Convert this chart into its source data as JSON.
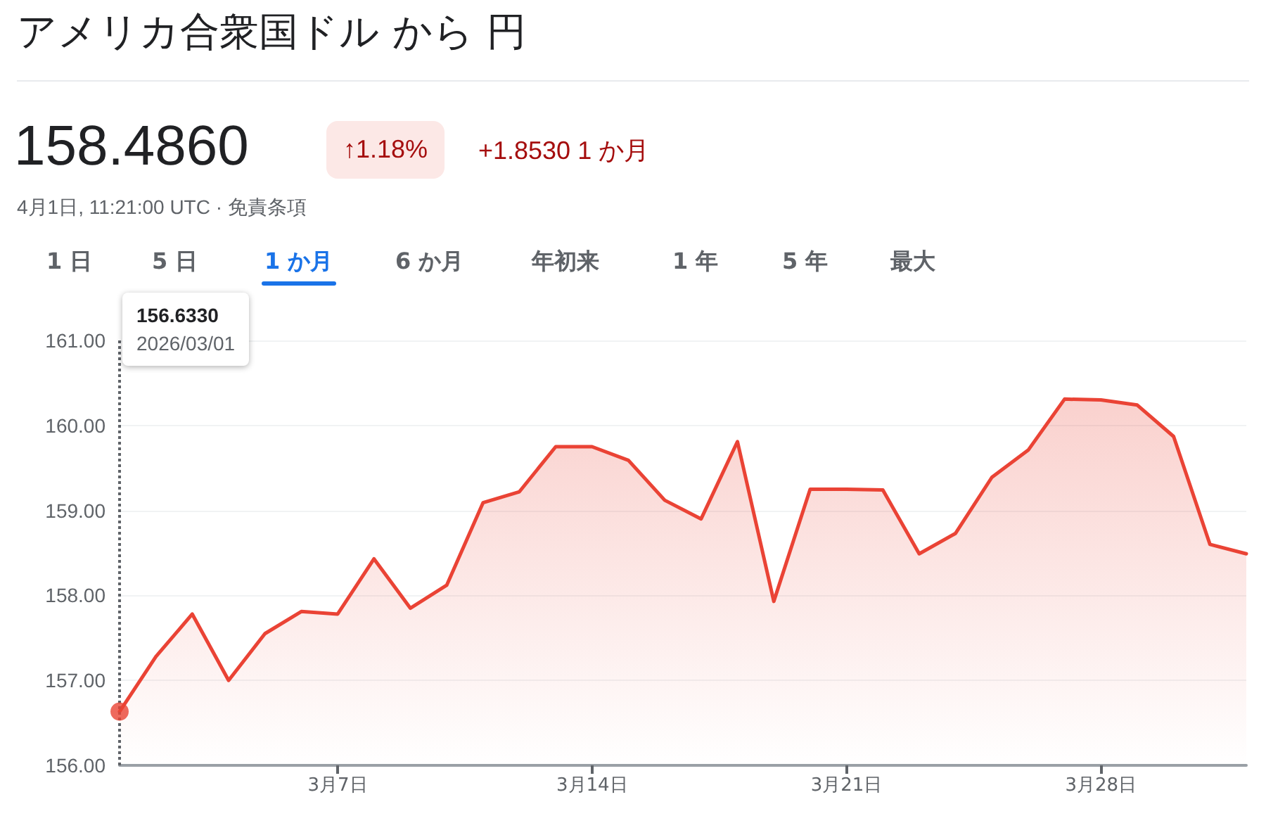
{
  "chart_data": {
    "type": "area",
    "title": "アメリカ合衆国ドル から 円",
    "subtitle": "158.4860",
    "annotations": [
      "↑1.18%",
      "+1.8530 1 か月",
      "4月1日, 11:21:00 UTC · 免責条項",
      "1 日",
      "5 日",
      "1 か月",
      "6 か月",
      "年初来",
      "1 年",
      "5 年",
      "最大",
      "156.6330\n2026/03/01"
    ],
    "x": [
      "2026-03-01",
      "2026-03-02",
      "2026-03-03",
      "2026-03-04",
      "2026-03-05",
      "2026-03-06",
      "2026-03-07",
      "2026-03-08",
      "2026-03-09",
      "2026-03-10",
      "2026-03-11",
      "2026-03-12",
      "2026-03-13",
      "2026-03-14",
      "2026-03-15",
      "2026-03-16",
      "2026-03-17",
      "2026-03-18",
      "2026-03-19",
      "2026-03-20",
      "2026-03-21",
      "2026-03-22",
      "2026-03-23",
      "2026-03-24",
      "2026-03-25",
      "2026-03-26",
      "2026-03-27",
      "2026-03-28",
      "2026-03-29",
      "2026-03-30",
      "2026-03-31",
      "2026-04-01"
    ],
    "series": [
      {
        "color": "#ea4335",
        "values": [
          156.633,
          157.28,
          157.78,
          157.0,
          157.55,
          157.81,
          157.78,
          158.43,
          157.85,
          158.12,
          159.09,
          159.22,
          159.75,
          159.75,
          159.59,
          159.12,
          158.9,
          159.81,
          157.93,
          159.25,
          159.25,
          159.24,
          158.49,
          158.73,
          159.39,
          159.71,
          160.31,
          160.3,
          160.24,
          159.87,
          158.6,
          158.49
        ]
      }
    ],
    "xlim": [
      "2026-03-01",
      "2026-04-01"
    ],
    "xticks": [
      {
        "value": "2026-03-07",
        "label": "3月7日"
      },
      {
        "value": "2026-03-14",
        "label": "3月14日"
      },
      {
        "value": "2026-03-21",
        "label": "3月21日"
      },
      {
        "value": "2026-03-28",
        "label": "3月28日"
      }
    ],
    "ylim": [
      156,
      161
    ],
    "yticks": [
      {
        "value": 156,
        "label": "156.00"
      },
      {
        "value": 157,
        "label": "157.00"
      },
      {
        "value": 158,
        "label": "158.00"
      },
      {
        "value": 159,
        "label": "159.00"
      },
      {
        "value": 160,
        "label": "160.00"
      },
      {
        "value": 161,
        "label": "161.00"
      }
    ],
    "ref_lines": [
      {
        "axis": "x",
        "value": "2026-03-01",
        "color": "#5f6368",
        "line_style": "dotted"
      }
    ],
    "grid": "y",
    "marker": "none",
    "line_style": "solid"
  }
}
